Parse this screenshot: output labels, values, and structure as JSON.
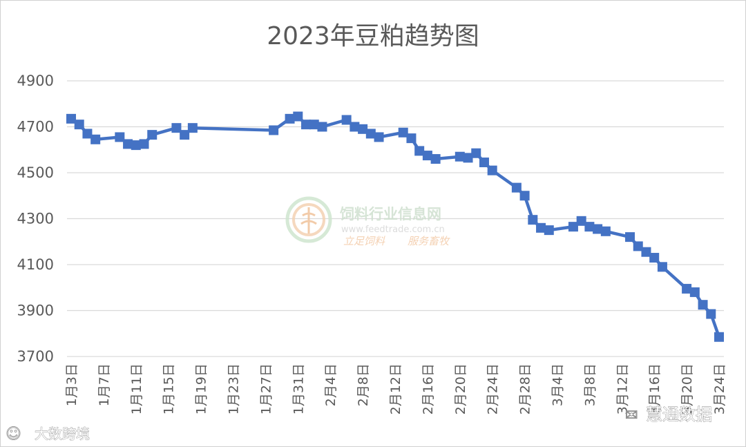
{
  "chart_data": {
    "type": "line",
    "title": "2023年豆粕趋势图",
    "xlabel": "",
    "ylabel": "",
    "ylim": [
      3700,
      4900
    ],
    "yticks": [
      3700,
      3900,
      4100,
      4300,
      4500,
      4700,
      4900
    ],
    "grid": true,
    "legend": "none",
    "line_color": "#4472C4",
    "x_start": "2023-01-03",
    "x_end": "2023-03-24",
    "x_tick_labels": [
      "1月3日",
      "1月7日",
      "1月11日",
      "1月15日",
      "1月19日",
      "1月23日",
      "1月27日",
      "1月31日",
      "2月4日",
      "2月8日",
      "2月12日",
      "2月16日",
      "2月20日",
      "2月24日",
      "2月28日",
      "3月4日",
      "3月8日",
      "3月12日",
      "3月16日",
      "3月20日",
      "3月24日"
    ],
    "x_tick_dates": [
      "2023-01-03",
      "2023-01-07",
      "2023-01-11",
      "2023-01-15",
      "2023-01-19",
      "2023-01-23",
      "2023-01-27",
      "2023-01-31",
      "2023-02-04",
      "2023-02-08",
      "2023-02-12",
      "2023-02-16",
      "2023-02-20",
      "2023-02-24",
      "2023-02-28",
      "2023-03-04",
      "2023-03-08",
      "2023-03-12",
      "2023-03-16",
      "2023-03-20",
      "2023-03-24"
    ],
    "x": [
      "2023-01-03",
      "2023-01-04",
      "2023-01-05",
      "2023-01-06",
      "2023-01-09",
      "2023-01-10",
      "2023-01-11",
      "2023-01-12",
      "2023-01-13",
      "2023-01-16",
      "2023-01-17",
      "2023-01-18",
      "2023-01-28",
      "2023-01-30",
      "2023-01-31",
      "2023-02-01",
      "2023-02-02",
      "2023-02-03",
      "2023-02-06",
      "2023-02-07",
      "2023-02-08",
      "2023-02-09",
      "2023-02-10",
      "2023-02-13",
      "2023-02-14",
      "2023-02-15",
      "2023-02-16",
      "2023-02-17",
      "2023-02-20",
      "2023-02-21",
      "2023-02-22",
      "2023-02-23",
      "2023-02-24",
      "2023-02-27",
      "2023-02-28",
      "2023-03-01",
      "2023-03-02",
      "2023-03-03",
      "2023-03-06",
      "2023-03-07",
      "2023-03-08",
      "2023-03-09",
      "2023-03-10",
      "2023-03-13",
      "2023-03-14",
      "2023-03-15",
      "2023-03-16",
      "2023-03-17",
      "2023-03-20",
      "2023-03-21",
      "2023-03-22",
      "2023-03-23",
      "2023-03-24"
    ],
    "series": [
      {
        "values": [
          4735,
          4710,
          4670,
          4645,
          4655,
          4625,
          4620,
          4625,
          4665,
          4695,
          4665,
          4695,
          4685,
          4735,
          4745,
          4710,
          4710,
          4700,
          4730,
          4700,
          4690,
          4670,
          4655,
          4675,
          4650,
          4595,
          4575,
          4560,
          4570,
          4565,
          4585,
          4545,
          4510,
          4435,
          4400,
          4295,
          4260,
          4250,
          4265,
          4290,
          4265,
          4255,
          4245,
          4220,
          4180,
          4155,
          4130,
          4090,
          3995,
          3980,
          3925,
          3885,
          3785
        ]
      }
    ]
  },
  "watermark": {
    "name": "饲料行业信息网",
    "url": "www.feedtrade.com.cn",
    "slogan_left": "立足饲料",
    "slogan_right": "服务畜牧"
  },
  "corner_marks": {
    "bottom_left": "大数跨境",
    "bottom_right": "慧通数据"
  }
}
